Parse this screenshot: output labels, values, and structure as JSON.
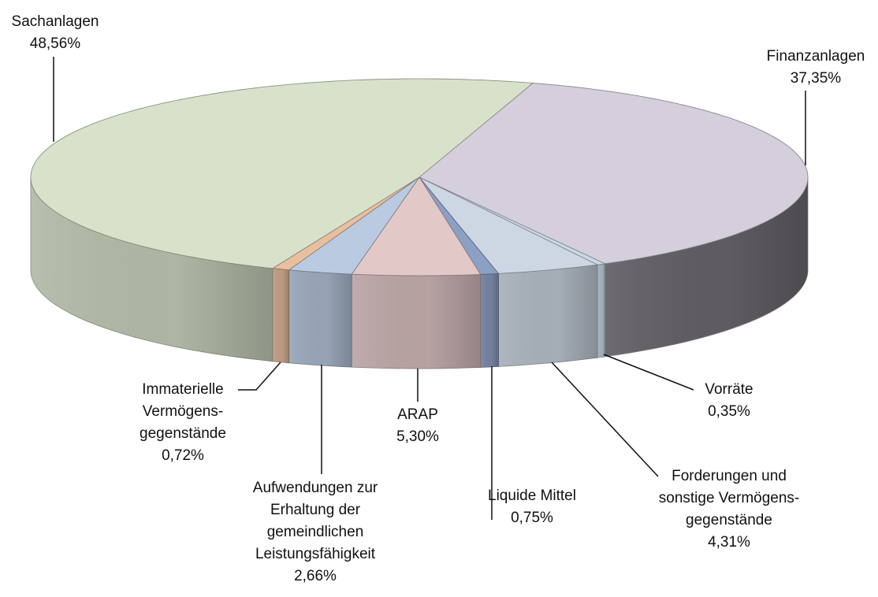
{
  "chart_data": {
    "type": "pie3d",
    "categories": [
      "Finanzanlagen",
      "Vorräte",
      "Forderungen und\nsonstige Vermögens-\ngegenstände",
      "Liquide Mittel",
      "ARAP",
      "Aufwendungen zur\nErhaltung der\ngemeindlichen\nLeistungsfähigkeit",
      "Immaterielle\nVermögens-\ngegenstände",
      "Sachanlagen"
    ],
    "values": [
      37.35,
      0.35,
      4.31,
      0.75,
      5.3,
      2.66,
      0.72,
      48.56
    ],
    "value_labels": [
      "37,35%",
      "0,35%",
      "4,31%",
      "0,75%",
      "5,30%",
      "2,66%",
      "0,72%",
      "48,56%"
    ],
    "colors": [
      "#d5cedc",
      "#c9d9e6",
      "#cdd7e3",
      "#8c9fc4",
      "#e3c8c8",
      "#b9cae1",
      "#e8bf9f",
      "#d8e1ca"
    ]
  }
}
